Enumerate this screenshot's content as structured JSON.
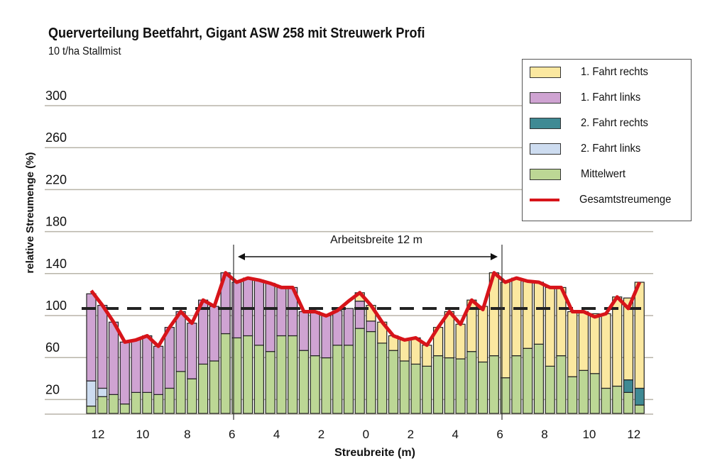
{
  "chart_data": {
    "type": "bar",
    "title": "Querverteilung Beetfahrt, Gigant ASW 258 mit Streuwerk Profi",
    "subtitle": "10 t/ha Stallmist",
    "xlabel": "Streubreite (m)",
    "ylabel": "relative Streumenge (%)",
    "ylim": [
      0,
      320
    ],
    "yticks": [
      20,
      60,
      100,
      140,
      180,
      220,
      260,
      300
    ],
    "xtick_labels": [
      "12",
      "10",
      "8",
      "6",
      "4",
      "2",
      "0",
      "2",
      "4",
      "6",
      "8",
      "10",
      "12"
    ],
    "reference_line": 100,
    "annotation": "Arbeitsbreite 12 m",
    "grid": true,
    "legend_position": "top-right",
    "colors": {
      "mittelwert": "#bcd795",
      "fahrt2_links": "#cddcf0",
      "fahrt2_rechts": "#3f8a94",
      "fahrt1_links": "#cfa3d2",
      "fahrt1_rechts": "#fbe8a0",
      "gesamt": "#d7141a"
    },
    "legend": [
      "1. Fahrt rechts",
      "1. Fahrt links",
      "2. Fahrt rechts",
      "2. Fahrt links",
      "Mittelwert",
      "Gesamtstreumenge"
    ],
    "series": [
      {
        "name": "Mittelwert",
        "key": "mittelwert",
        "values": [
          7,
          16,
          18,
          9,
          20,
          20,
          18,
          24,
          40,
          33,
          47,
          50,
          76,
          72,
          74,
          65,
          59,
          74,
          74,
          60,
          55,
          53,
          65,
          65,
          81,
          78,
          67,
          60,
          50,
          47,
          45,
          55,
          53,
          52,
          59,
          49,
          55,
          34,
          55,
          62,
          66,
          45,
          55,
          35,
          41,
          38,
          24,
          26,
          20,
          8
        ]
      },
      {
        "name": "2. Fahrt links",
        "key": "fahrt2_links",
        "values": [
          24,
          8,
          0,
          0,
          0,
          0,
          0,
          0,
          0,
          0,
          0,
          0,
          0,
          0,
          0,
          0,
          0,
          0,
          0,
          0,
          0,
          0,
          0,
          0,
          0,
          0,
          0,
          0,
          0,
          0,
          0,
          0,
          0,
          0,
          0,
          0,
          0,
          0,
          0,
          0,
          0,
          0,
          0,
          0,
          0,
          0,
          0,
          0,
          0,
          0
        ]
      },
      {
        "name": "2. Fahrt rechts",
        "key": "fahrt2_rechts",
        "values": [
          0,
          0,
          0,
          0,
          0,
          0,
          0,
          0,
          0,
          0,
          0,
          0,
          0,
          0,
          0,
          0,
          0,
          0,
          0,
          0,
          0,
          0,
          0,
          0,
          0,
          0,
          0,
          0,
          0,
          0,
          0,
          0,
          0,
          0,
          0,
          0,
          0,
          0,
          0,
          0,
          0,
          0,
          0,
          0,
          0,
          0,
          0,
          0,
          12,
          16
        ]
      },
      {
        "name": "1. Fahrt links",
        "key": "fahrt1_links",
        "values": [
          83,
          79,
          69,
          59,
          50,
          54,
          46,
          58,
          57,
          53,
          61,
          52,
          58,
          53,
          55,
          62,
          65,
          46,
          46,
          37,
          42,
          40,
          33,
          35,
          26,
          10,
          0,
          0,
          0,
          0,
          0,
          0,
          0,
          0,
          0,
          0,
          0,
          0,
          0,
          0,
          0,
          0,
          0,
          0,
          0,
          0,
          0,
          0,
          0,
          0
        ]
      },
      {
        "name": "1. Fahrt rechts",
        "key": "fahrt1_rechts",
        "values": [
          0,
          0,
          0,
          0,
          0,
          0,
          0,
          0,
          0,
          0,
          0,
          0,
          0,
          0,
          0,
          0,
          0,
          0,
          0,
          0,
          0,
          0,
          0,
          0,
          8,
          15,
          20,
          14,
          20,
          25,
          20,
          27,
          44,
          33,
          49,
          53,
          79,
          91,
          74,
          64,
          59,
          75,
          65,
          62,
          56,
          57,
          71,
          85,
          78,
          101
        ]
      },
      {
        "name": "Gesamtstreumenge",
        "key": "gesamt",
        "type": "line",
        "values": [
          117,
          103,
          87,
          68,
          70,
          74,
          64,
          82,
          97,
          86,
          108,
          102,
          134,
          125,
          129,
          127,
          124,
          120,
          120,
          97,
          97,
          93,
          98,
          107,
          115,
          103,
          87,
          74,
          70,
          72,
          65,
          82,
          97,
          85,
          108,
          99,
          134,
          125,
          129,
          126,
          125,
          120,
          120,
          97,
          97,
          92,
          95,
          111,
          100,
          125
        ]
      }
    ]
  }
}
